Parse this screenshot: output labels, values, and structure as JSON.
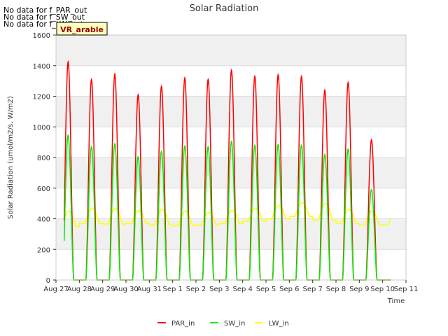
{
  "no_data_messages": [
    "No data for f_PAR_out",
    "No data for f_SW_out",
    "No data for f_LW_out"
  ],
  "site_badge": "VR_arable",
  "colors": {
    "PAR_in": "#ff0000",
    "SW_in": "#00ee00",
    "LW_in": "#ffff00",
    "band": "#f0f0f0"
  },
  "chart_data": {
    "type": "line",
    "title": "Solar Radiation",
    "xlabel": "Time",
    "ylabel": "Solar Radiation (umol/m2/s, W/m2)",
    "ylim": [
      0,
      1600
    ],
    "yticks": [
      0,
      200,
      400,
      600,
      800,
      1000,
      1200,
      1400,
      1600
    ],
    "xlim": [
      0,
      15
    ],
    "xtick_labels": [
      "Aug 27",
      "Aug 28",
      "Aug 29",
      "Aug 30",
      "Aug 31",
      "Sep 1",
      "Sep 2",
      "Sep 3",
      "Sep 4",
      "Sep 5",
      "Sep 6",
      "Sep 7",
      "Sep 8",
      "Sep 9",
      "Sep 10",
      "Sep 11"
    ],
    "data_start_day": 0.35,
    "data_end_day": 14.35,
    "legend_position": "bottom-center",
    "series": [
      {
        "name": "PAR_in",
        "daily_peak": [
          1425,
          1310,
          1345,
          1210,
          1265,
          1320,
          1310,
          1370,
          1330,
          1340,
          1330,
          1240,
          1290,
          915
        ]
      },
      {
        "name": "SW_in",
        "daily_peak": [
          945,
          870,
          890,
          805,
          840,
          875,
          870,
          905,
          880,
          885,
          880,
          820,
          855,
          590
        ]
      },
      {
        "name": "LW_in",
        "night_min": [
          350,
          370,
          365,
          370,
          360,
          355,
          360,
          370,
          385,
          400,
          415,
          390,
          370,
          360
        ],
        "day_max": [
          450,
          470,
          470,
          455,
          460,
          450,
          440,
          455,
          470,
          485,
          505,
          500,
          460,
          450
        ]
      }
    ]
  }
}
